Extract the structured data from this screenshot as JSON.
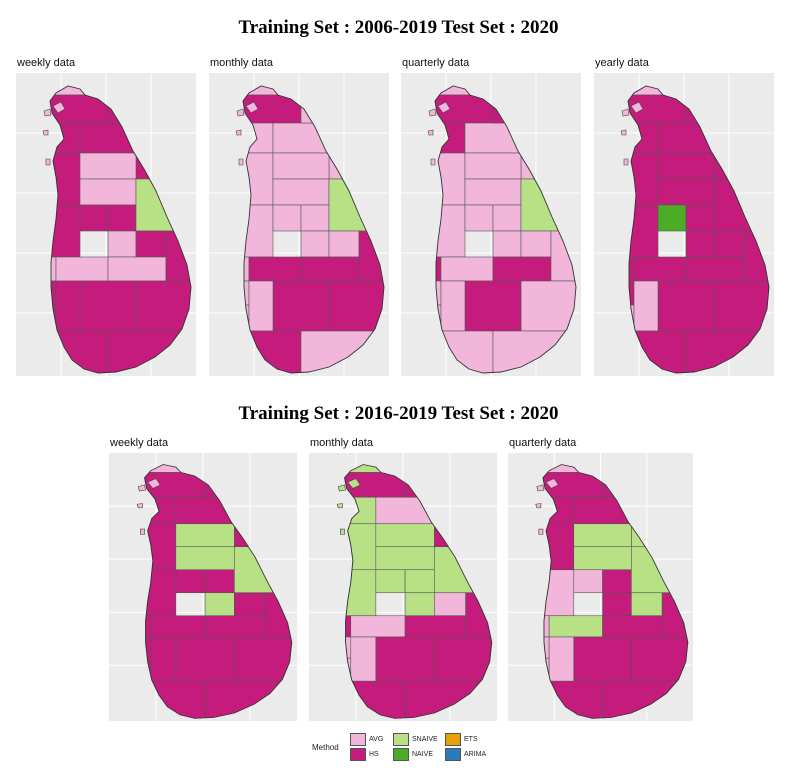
{
  "sections": [
    {
      "title": "Training Set : 2006-2019 Test Set : 2020",
      "panels": [
        {
          "title": "weekly data",
          "scheme": [
            "A",
            "H",
            "H",
            "H",
            "H",
            "H",
            "H",
            "A",
            "A",
            "H",
            "H",
            "H",
            "A",
            "S",
            "H",
            "A",
            "A",
            "A",
            "H",
            "H",
            "H",
            "H",
            "H",
            "H",
            "H",
            "H"
          ]
        },
        {
          "title": "monthly data",
          "scheme": [
            "A",
            "H",
            "A",
            "A",
            "A",
            "A",
            "A",
            "A",
            "A",
            "A",
            "A",
            "A",
            "A",
            "S",
            "A",
            "A",
            "H",
            "H",
            "H",
            "H",
            "H",
            "A",
            "A",
            "A",
            "H",
            "A"
          ]
        },
        {
          "title": "quarterly data",
          "scheme": [
            "A",
            "H",
            "H",
            "A",
            "H",
            "A",
            "A",
            "A",
            "A",
            "A",
            "A",
            "A",
            "A",
            "S",
            "A",
            "H",
            "A",
            "H",
            "A",
            "A",
            "H",
            "A",
            "A",
            "A",
            "A",
            "A"
          ]
        },
        {
          "title": "yearly data",
          "scheme": [
            "A",
            "H",
            "H",
            "H",
            "H",
            "H",
            "H",
            "H",
            "H",
            "H",
            "N",
            "H",
            "H",
            "H",
            "H",
            "H",
            "H",
            "H",
            "H",
            "H",
            "H",
            "H",
            "A",
            "A",
            "H",
            "H"
          ]
        }
      ]
    },
    {
      "title": "Training Set : 2016-2019 Test Set : 2020",
      "panels": [
        {
          "title": "weekly data",
          "scheme": [
            "A",
            "H",
            "H",
            "H",
            "H",
            "H",
            "H",
            "S",
            "S",
            "H",
            "H",
            "H",
            "S",
            "S",
            "H",
            "H",
            "H",
            "H",
            "H",
            "H",
            "H",
            "H",
            "H",
            "H",
            "H",
            "H"
          ]
        },
        {
          "title": "monthly data",
          "scheme": [
            "S",
            "H",
            "S",
            "A",
            "H",
            "H",
            "S",
            "S",
            "S",
            "S",
            "S",
            "S",
            "S",
            "S",
            "A",
            "H",
            "A",
            "H",
            "H",
            "H",
            "H",
            "A",
            "A",
            "A",
            "H",
            "H"
          ]
        },
        {
          "title": "quarterly data",
          "scheme": [
            "A",
            "H",
            "H",
            "H",
            "H",
            "S",
            "H",
            "S",
            "S",
            "A",
            "A",
            "H",
            "H",
            "S",
            "S",
            "A",
            "S",
            "H",
            "H",
            "H",
            "H",
            "A",
            "A",
            "A",
            "H",
            "H"
          ]
        }
      ]
    }
  ],
  "legend": {
    "title": "Method",
    "items": [
      {
        "key": "A",
        "label": "AVG",
        "color": "#f1b6da"
      },
      {
        "key": "H",
        "label": "HS",
        "color": "#c51b7d"
      },
      {
        "key": "S",
        "label": "SNAIVE",
        "color": "#b8e186"
      },
      {
        "key": "N",
        "label": "NAIVE",
        "color": "#4dac26"
      },
      {
        "key": "E",
        "label": "ETS",
        "color": "#e6a10a"
      },
      {
        "key": "R",
        "label": "ARIMA",
        "color": "#2b7bba"
      }
    ]
  }
}
